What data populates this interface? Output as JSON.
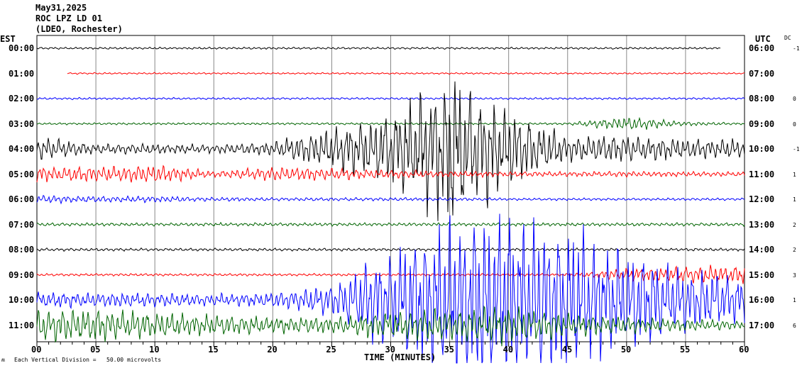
{
  "header": {
    "date": "May31,2025",
    "station": "ROC LPZ LD 01",
    "network": "(LDEO, Rochester)"
  },
  "left_axis_title": "EST",
  "right_axis_title": "UTC",
  "dc_title": "DC",
  "footer": {
    "scale_label": "Each Vertical Division =   50.00 microvolts",
    "corner_mark": "ʍ"
  },
  "chart_data": {
    "type": "line",
    "xlabel": "TIME (MINUTES)",
    "xlim": [
      0,
      60
    ],
    "x_ticks": [
      "00",
      "05",
      "10",
      "15",
      "20",
      "25",
      "30",
      "35",
      "40",
      "45",
      "50",
      "55",
      "60"
    ],
    "grid": "vertical every 5 minutes",
    "amplitude_note": "relative peak amplitude in trace spacings, sampled every 5 minutes",
    "rows": [
      {
        "est": "00:00",
        "utc": "06:00",
        "dc": "-1",
        "color": "#000000",
        "start": 0,
        "end": 58,
        "envelope": [
          0.05,
          0.05,
          0.05,
          0.05,
          0.05,
          0.05,
          0.05,
          0.05,
          0.05,
          0.05,
          0.05,
          0.05,
          0.05
        ]
      },
      {
        "est": "01:00",
        "utc": "07:00",
        "dc": "",
        "color": "#ff0000",
        "start": 2.6,
        "end": 60,
        "envelope": [
          0.04,
          0.04,
          0.04,
          0.04,
          0.04,
          0.04,
          0.04,
          0.04,
          0.04,
          0.04,
          0.04,
          0.04,
          0.04
        ]
      },
      {
        "est": "02:00",
        "utc": "08:00",
        "dc": "0",
        "color": "#0000ff",
        "start": 0,
        "end": 60,
        "envelope": [
          0.05,
          0.05,
          0.05,
          0.05,
          0.05,
          0.05,
          0.05,
          0.05,
          0.05,
          0.05,
          0.05,
          0.05,
          0.05
        ]
      },
      {
        "est": "03:00",
        "utc": "09:00",
        "dc": "0",
        "color": "#006400",
        "start": 0,
        "end": 60,
        "envelope": [
          0.05,
          0.05,
          0.05,
          0.05,
          0.05,
          0.05,
          0.05,
          0.05,
          0.05,
          0.05,
          0.35,
          0.1,
          0.05
        ]
      },
      {
        "est": "04:00",
        "utc": "10:00",
        "dc": "-1",
        "color": "#000000",
        "start": 0,
        "end": 60,
        "envelope": [
          0.6,
          0.25,
          0.25,
          0.2,
          0.35,
          1.0,
          1.8,
          3.8,
          2.0,
          0.6,
          0.7,
          0.5,
          0.5
        ]
      },
      {
        "est": "05:00",
        "utc": "11:00",
        "dc": "1",
        "color": "#ff0000",
        "start": 0,
        "end": 60,
        "envelope": [
          0.4,
          0.35,
          0.45,
          0.15,
          0.35,
          0.3,
          0.2,
          0.15,
          0.12,
          0.12,
          0.15,
          0.12,
          0.12
        ]
      },
      {
        "est": "06:00",
        "utc": "12:00",
        "dc": "1",
        "color": "#0000ff",
        "start": 0,
        "end": 60,
        "envelope": [
          0.2,
          0.15,
          0.15,
          0.1,
          0.08,
          0.08,
          0.08,
          0.08,
          0.06,
          0.06,
          0.06,
          0.06,
          0.06
        ]
      },
      {
        "est": "07:00",
        "utc": "13:00",
        "dc": "2",
        "color": "#006400",
        "start": 0,
        "end": 60,
        "envelope": [
          0.08,
          0.08,
          0.08,
          0.08,
          0.08,
          0.08,
          0.08,
          0.08,
          0.08,
          0.08,
          0.08,
          0.08,
          0.08
        ]
      },
      {
        "est": "08:00",
        "utc": "14:00",
        "dc": "2",
        "color": "#000000",
        "start": 0,
        "end": 60,
        "envelope": [
          0.07,
          0.07,
          0.07,
          0.07,
          0.07,
          0.07,
          0.07,
          0.07,
          0.07,
          0.07,
          0.07,
          0.07,
          0.07
        ]
      },
      {
        "est": "09:00",
        "utc": "15:00",
        "dc": "3",
        "color": "#ff0000",
        "start": 0,
        "end": 60,
        "envelope": [
          0.06,
          0.06,
          0.06,
          0.06,
          0.06,
          0.06,
          0.06,
          0.06,
          0.06,
          0.06,
          0.3,
          0.4,
          0.45
        ]
      },
      {
        "est": "10:00",
        "utc": "16:00",
        "dc": "1",
        "color": "#0000ff",
        "start": 0,
        "end": 60,
        "envelope": [
          0.4,
          0.35,
          0.35,
          0.3,
          0.35,
          0.8,
          2.5,
          4.0,
          4.5,
          3.5,
          2.5,
          1.5,
          1.2
        ]
      },
      {
        "est": "11:00",
        "utc": "17:00",
        "dc": "6",
        "color": "#006400",
        "start": 0,
        "end": 60,
        "envelope": [
          0.8,
          0.8,
          0.6,
          0.5,
          0.4,
          0.4,
          0.7,
          0.8,
          0.9,
          0.6,
          0.4,
          0.3,
          0.2
        ]
      }
    ]
  }
}
